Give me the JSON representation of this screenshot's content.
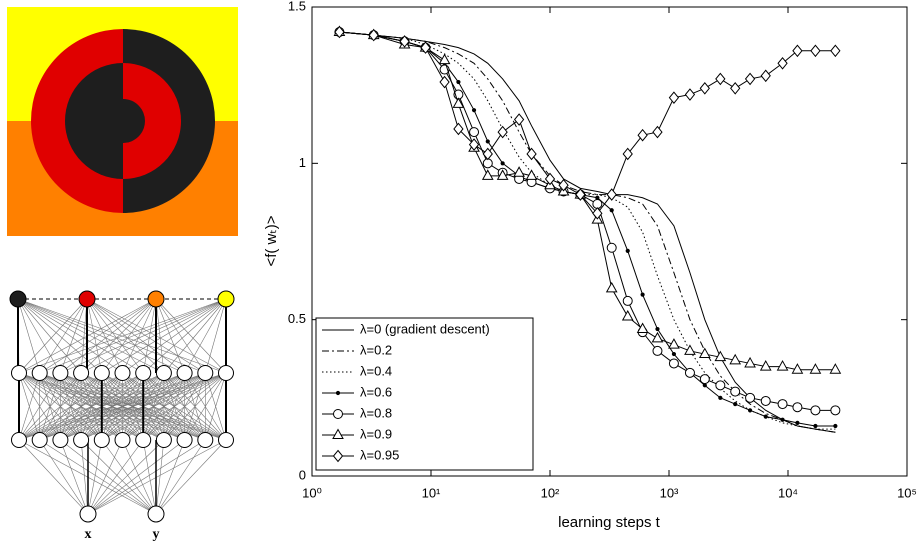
{
  "network": {
    "inputs": [
      "x",
      "y"
    ]
  },
  "chart_data": {
    "type": "line",
    "xlabel": "learning steps t",
    "ylabel": "<f( wₜ)>",
    "xscale": "log",
    "x": [
      1.7,
      3.3,
      6,
      9,
      13,
      17,
      23,
      30,
      40,
      55,
      70,
      100,
      130,
      180,
      250,
      330,
      450,
      600,
      800,
      1100,
      1500,
      2000,
      2700,
      3600,
      4800,
      6500,
      9000,
      12000,
      17000,
      25000
    ],
    "xlim": [
      1,
      100000
    ],
    "xticks": [
      {
        "value": 1,
        "label": "10⁰"
      },
      {
        "value": 10,
        "label": "10¹"
      },
      {
        "value": 100,
        "label": "10²"
      },
      {
        "value": 1000,
        "label": "10³"
      },
      {
        "value": 10000,
        "label": "10⁴"
      },
      {
        "value": 100000,
        "label": "10⁵"
      }
    ],
    "ylim": [
      0,
      1.5
    ],
    "yticks": [
      0,
      0.5,
      1,
      1.5
    ],
    "legend": "lower left",
    "series": [
      {
        "name": "λ=0 (gradient descent)",
        "color": "#000000",
        "dash": "solid",
        "marker": "none",
        "values": [
          1.42,
          1.41,
          1.4,
          1.39,
          1.38,
          1.37,
          1.35,
          1.32,
          1.27,
          1.2,
          1.12,
          1.01,
          0.95,
          0.92,
          0.91,
          0.9,
          0.9,
          0.89,
          0.87,
          0.8,
          0.65,
          0.5,
          0.38,
          0.3,
          0.25,
          0.21,
          0.18,
          0.16,
          0.15,
          0.14
        ]
      },
      {
        "name": "λ=0.2",
        "color": "#000000",
        "dash": "dashdot",
        "marker": "none",
        "values": [
          1.42,
          1.41,
          1.4,
          1.39,
          1.37,
          1.35,
          1.32,
          1.27,
          1.2,
          1.1,
          1.03,
          0.96,
          0.93,
          0.91,
          0.9,
          0.9,
          0.89,
          0.87,
          0.8,
          0.65,
          0.5,
          0.4,
          0.32,
          0.27,
          0.23,
          0.2,
          0.18,
          0.16,
          0.15,
          0.14
        ]
      },
      {
        "name": "λ=0.4",
        "color": "#000000",
        "dash": "dotted",
        "marker": "none",
        "values": [
          1.42,
          1.41,
          1.4,
          1.38,
          1.35,
          1.32,
          1.27,
          1.2,
          1.11,
          1.02,
          0.97,
          0.93,
          0.91,
          0.9,
          0.9,
          0.89,
          0.86,
          0.78,
          0.64,
          0.5,
          0.4,
          0.33,
          0.28,
          0.24,
          0.21,
          0.19,
          0.17,
          0.16,
          0.15,
          0.15
        ]
      },
      {
        "name": "λ=0.6",
        "color": "#000000",
        "dash": "solid",
        "marker": "point",
        "values": [
          1.42,
          1.41,
          1.39,
          1.37,
          1.32,
          1.26,
          1.17,
          1.07,
          1.0,
          0.96,
          0.94,
          0.92,
          0.91,
          0.9,
          0.89,
          0.85,
          0.72,
          0.58,
          0.47,
          0.39,
          0.33,
          0.29,
          0.25,
          0.23,
          0.21,
          0.19,
          0.18,
          0.17,
          0.16,
          0.16
        ]
      },
      {
        "name": "λ=0.8",
        "color": "#000000",
        "dash": "solid",
        "marker": "circle",
        "values": [
          1.42,
          1.41,
          1.39,
          1.37,
          1.3,
          1.22,
          1.1,
          1.0,
          0.97,
          0.95,
          0.94,
          0.92,
          0.91,
          0.9,
          0.87,
          0.73,
          0.56,
          0.46,
          0.4,
          0.36,
          0.33,
          0.31,
          0.29,
          0.27,
          0.25,
          0.24,
          0.23,
          0.22,
          0.21,
          0.21
        ]
      },
      {
        "name": "λ=0.9",
        "color": "#000000",
        "dash": "solid",
        "marker": "triangle",
        "values": [
          1.42,
          1.41,
          1.38,
          1.37,
          1.33,
          1.19,
          1.05,
          0.96,
          0.96,
          0.97,
          0.96,
          0.93,
          0.91,
          0.9,
          0.82,
          0.6,
          0.51,
          0.47,
          0.44,
          0.42,
          0.4,
          0.39,
          0.38,
          0.37,
          0.36,
          0.35,
          0.35,
          0.34,
          0.34,
          0.34
        ]
      },
      {
        "name": "λ=0.95",
        "color": "#000000",
        "dash": "solid",
        "marker": "diamond",
        "values": [
          1.42,
          1.41,
          1.39,
          1.37,
          1.26,
          1.11,
          1.06,
          1.03,
          1.1,
          1.14,
          1.03,
          0.95,
          0.93,
          0.9,
          0.84,
          0.9,
          1.03,
          1.09,
          1.1,
          1.21,
          1.22,
          1.24,
          1.27,
          1.24,
          1.27,
          1.28,
          1.32,
          1.36,
          1.36,
          1.36
        ]
      }
    ]
  }
}
